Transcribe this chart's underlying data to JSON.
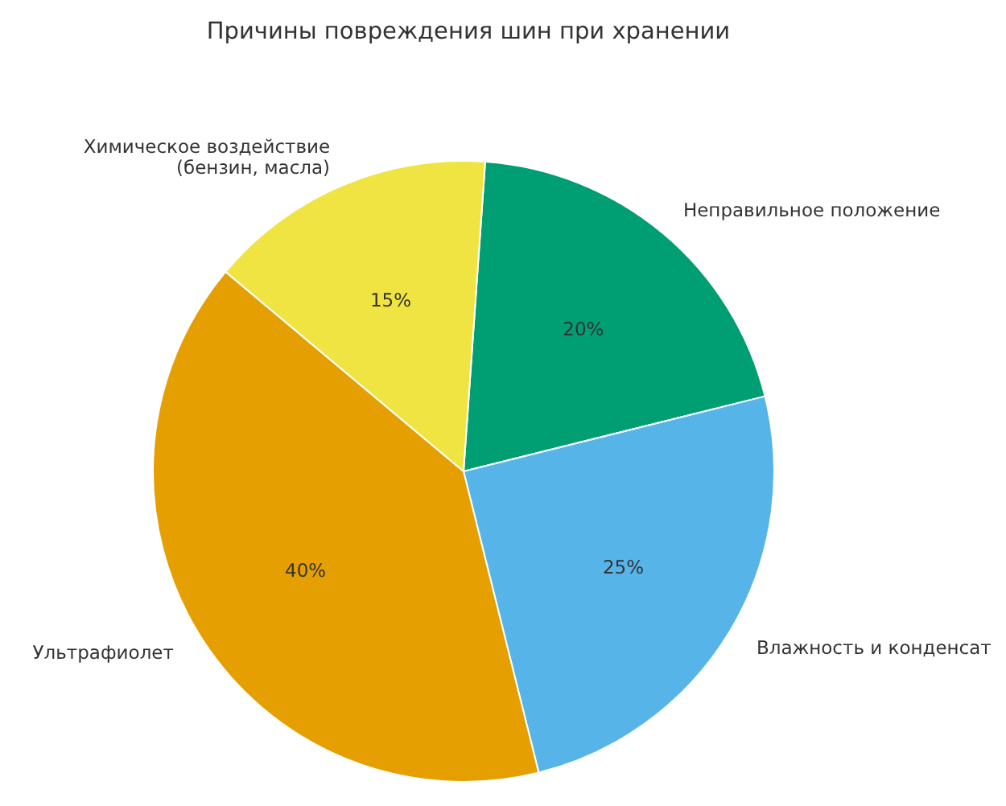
{
  "chart_data": {
    "type": "pie",
    "title": "Причины повреждения шин при хранении",
    "categories": [
      "Неправильное положение",
      "Влажность и конденсат",
      "Ультрафиолет",
      "Химическое воздействие\n(бензин, масла)"
    ],
    "values": [
      20,
      25,
      40,
      15
    ],
    "value_labels": [
      "20%",
      "25%",
      "40%",
      "15%"
    ],
    "colors": [
      "#009e73",
      "#56b4e9",
      "#e69f00",
      "#f0e442"
    ],
    "legend": false
  }
}
